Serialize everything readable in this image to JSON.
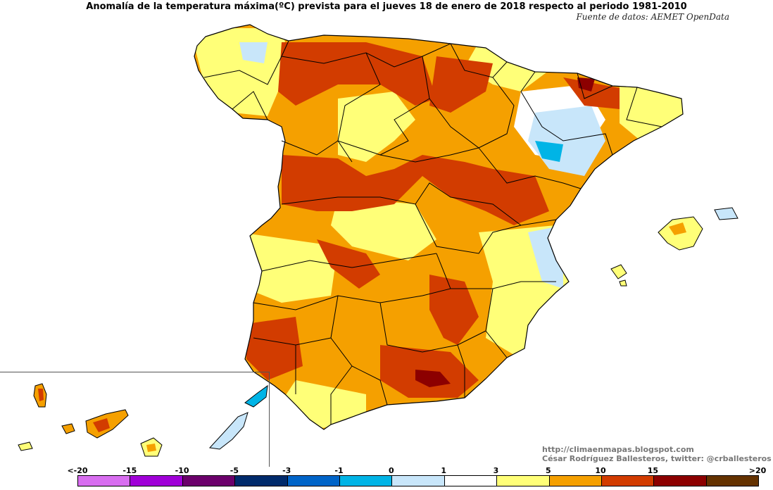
{
  "map": {
    "title": "Anomalía de la temperatura máxima(ºC) prevista para el jueves 18 de enero de 2018 respecto al periodo 1981-2010",
    "subtitle": "Fuente de datos: AEMET OpenData",
    "credit_url": "http://climaenmapas.blogspot.com",
    "credit_author": "César Rodríguez Ballesteros, twitter: @crballesteros"
  },
  "legend": {
    "labels": [
      "<-20",
      "-15",
      "-10",
      "-5",
      "-3",
      "-1",
      "0",
      "1",
      "3",
      "5",
      "10",
      "15",
      ">20"
    ],
    "colors": [
      "#d86ef0",
      "#a000d8",
      "#6b006b",
      "#002a6b",
      "#0064c8",
      "#00b4e6",
      "#c8e6fa",
      "#ffffff",
      "#ffff78",
      "#f5a000",
      "#d23c00",
      "#8c0000",
      "#643200"
    ]
  },
  "palette": {
    "land_base": "#f5a000",
    "warm_mid": "#ffff78",
    "hot": "#d23c00",
    "very_hot": "#8c0000",
    "cool": "#c8e6fa",
    "cold": "#00b4e6",
    "neutral": "#ffffff",
    "border": "#000000"
  }
}
